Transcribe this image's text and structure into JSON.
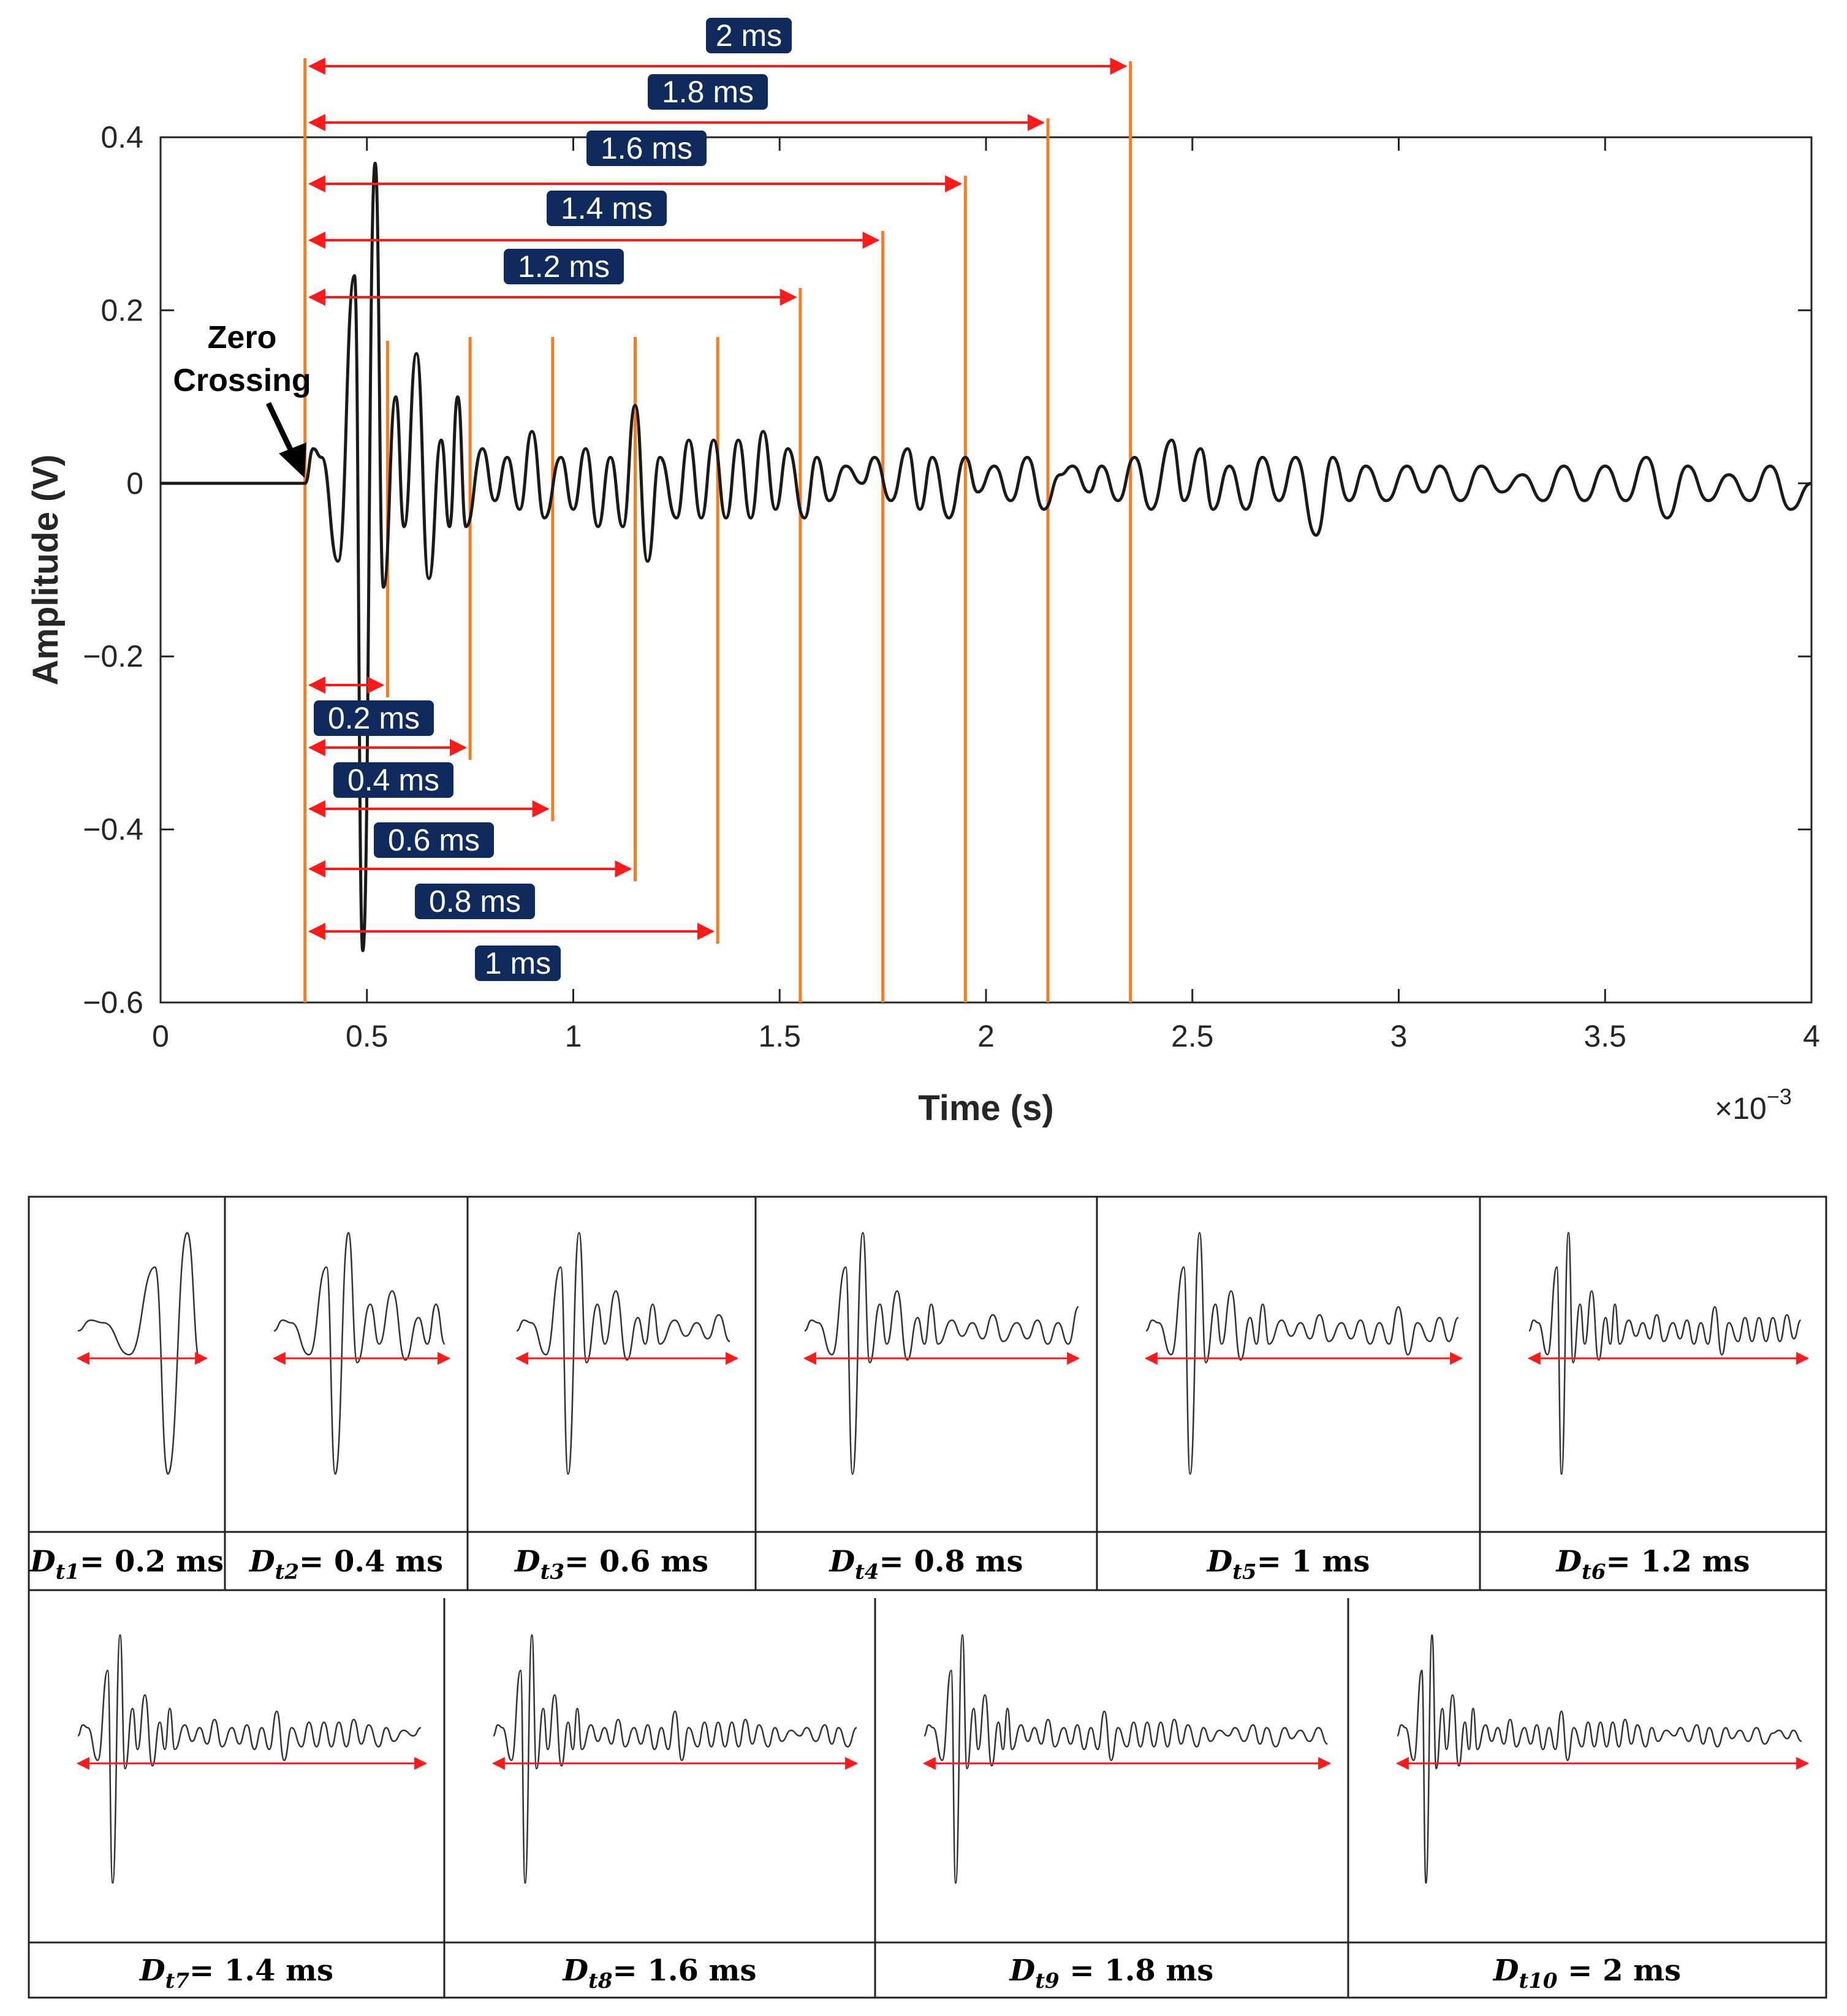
{
  "chart_data": {
    "type": "line",
    "title": "",
    "xlabel": "Time (s)",
    "ylabel": "Amplitude (V)",
    "x_multiplier_label": "×10",
    "x_multiplier_exponent": "−3",
    "xlim": [
      0,
      4
    ],
    "ylim": [
      -0.6,
      0.4
    ],
    "x_ticks": [
      0,
      0.5,
      1,
      1.5,
      2,
      2.5,
      3,
      3.5,
      4
    ],
    "x_tick_labels": [
      "0",
      "0.5",
      "1",
      "1.5",
      "2",
      "2.5",
      "3",
      "3.5",
      "4"
    ],
    "y_ticks": [
      -0.6,
      -0.4,
      -0.2,
      0,
      0.2,
      0.4
    ],
    "y_tick_labels": [
      "−0.6",
      "−0.4",
      "−0.2",
      "0",
      "0.2",
      "0.4"
    ],
    "line_color": "#1a1a1a",
    "signal_peaks": [
      [
        0,
        0
      ],
      [
        0.35,
        0
      ],
      [
        0.37,
        0.04
      ],
      [
        0.39,
        0.03
      ],
      [
        0.43,
        -0.09
      ],
      [
        0.47,
        0.24
      ],
      [
        0.49,
        -0.54
      ],
      [
        0.52,
        0.37
      ],
      [
        0.54,
        -0.12
      ],
      [
        0.57,
        0.1
      ],
      [
        0.59,
        -0.05
      ],
      [
        0.62,
        0.15
      ],
      [
        0.65,
        -0.11
      ],
      [
        0.68,
        0.05
      ],
      [
        0.7,
        -0.05
      ],
      [
        0.72,
        0.1
      ],
      [
        0.74,
        -0.05
      ],
      [
        0.78,
        0.04
      ],
      [
        0.81,
        -0.02
      ],
      [
        0.84,
        0.03
      ],
      [
        0.87,
        -0.03
      ],
      [
        0.9,
        0.06
      ],
      [
        0.93,
        -0.04
      ],
      [
        0.97,
        0.03
      ],
      [
        1.0,
        -0.03
      ],
      [
        1.03,
        0.04
      ],
      [
        1.06,
        -0.05
      ],
      [
        1.09,
        0.03
      ],
      [
        1.12,
        -0.05
      ],
      [
        1.15,
        0.09
      ],
      [
        1.18,
        -0.09
      ],
      [
        1.21,
        0.03
      ],
      [
        1.25,
        -0.04
      ],
      [
        1.28,
        0.05
      ],
      [
        1.31,
        -0.04
      ],
      [
        1.34,
        0.05
      ],
      [
        1.37,
        -0.04
      ],
      [
        1.4,
        0.05
      ],
      [
        1.43,
        -0.04
      ],
      [
        1.46,
        0.06
      ],
      [
        1.49,
        -0.03
      ],
      [
        1.52,
        0.04
      ],
      [
        1.56,
        -0.04
      ],
      [
        1.59,
        0.03
      ],
      [
        1.62,
        -0.02
      ],
      [
        1.66,
        0.02
      ],
      [
        1.7,
        0.0
      ],
      [
        1.73,
        0.03
      ],
      [
        1.77,
        -0.02
      ],
      [
        1.81,
        0.04
      ],
      [
        1.84,
        -0.03
      ],
      [
        1.87,
        0.03
      ],
      [
        1.91,
        -0.04
      ],
      [
        1.95,
        0.03
      ],
      [
        1.98,
        -0.01
      ],
      [
        2.02,
        0.02
      ],
      [
        2.06,
        -0.02
      ],
      [
        2.1,
        0.03
      ],
      [
        2.14,
        -0.03
      ],
      [
        2.18,
        0.01
      ],
      [
        2.21,
        0.02
      ],
      [
        2.25,
        -0.01
      ],
      [
        2.28,
        0.02
      ],
      [
        2.32,
        -0.02
      ],
      [
        2.36,
        0.03
      ],
      [
        2.4,
        -0.03
      ],
      [
        2.45,
        0.05
      ],
      [
        2.48,
        -0.02
      ],
      [
        2.52,
        0.04
      ],
      [
        2.55,
        -0.03
      ],
      [
        2.59,
        0.02
      ],
      [
        2.63,
        -0.03
      ],
      [
        2.67,
        0.03
      ],
      [
        2.71,
        -0.02
      ],
      [
        2.75,
        0.03
      ],
      [
        2.8,
        -0.06
      ],
      [
        2.84,
        0.03
      ],
      [
        2.88,
        -0.02
      ],
      [
        2.92,
        0.02
      ],
      [
        2.97,
        -0.02
      ],
      [
        3.02,
        0.02
      ],
      [
        3.06,
        -0.01
      ],
      [
        3.1,
        0.02
      ],
      [
        3.15,
        -0.02
      ],
      [
        3.2,
        0.02
      ],
      [
        3.25,
        -0.01
      ],
      [
        3.3,
        0.01
      ],
      [
        3.35,
        -0.02
      ],
      [
        3.4,
        0.02
      ],
      [
        3.45,
        -0.02
      ],
      [
        3.5,
        0.02
      ],
      [
        3.55,
        -0.02
      ],
      [
        3.6,
        0.03
      ],
      [
        3.65,
        -0.04
      ],
      [
        3.7,
        0.02
      ],
      [
        3.75,
        -0.02
      ],
      [
        3.8,
        0.01
      ],
      [
        3.85,
        -0.02
      ],
      [
        3.9,
        0.02
      ],
      [
        3.95,
        -0.03
      ],
      [
        4.0,
        0.0
      ]
    ],
    "onset_ms": 0.35,
    "windows_ms": [
      0.2,
      0.4,
      0.6,
      0.8,
      1.0,
      1.2,
      1.4,
      1.6,
      1.8,
      2.0
    ],
    "window_labels": [
      "0.2 ms",
      "0.4 ms",
      "0.6 ms",
      "0.8 ms",
      "1 ms",
      "1.2 ms",
      "1.4 ms",
      "1.6 ms",
      "1.8 ms",
      "2 ms"
    ],
    "annotation_label_color": "#0f2a5c",
    "marker_color": "#f57c22",
    "arrow_color": "#ff1a1a",
    "zero_crossing": {
      "line1": "Zero",
      "line2": "Crossing"
    }
  },
  "panels": [
    {
      "symbol": "D",
      "sub": "t1",
      "eq": "= 0.2 ms"
    },
    {
      "symbol": "D",
      "sub": "t2",
      "eq": "= 0.4 ms"
    },
    {
      "symbol": "D",
      "sub": "t3",
      "eq": "= 0.6 ms"
    },
    {
      "symbol": "D",
      "sub": "t4",
      "eq": "= 0.8 ms"
    },
    {
      "symbol": "D",
      "sub": "t5",
      "eq": "= 1 ms"
    },
    {
      "symbol": "D",
      "sub": "t6",
      "eq": "= 1.2 ms"
    },
    {
      "symbol": "D",
      "sub": "t7",
      "eq": "= 1.4 ms"
    },
    {
      "symbol": "D",
      "sub": "t8",
      "eq": "= 1.6 ms"
    },
    {
      "symbol": "D",
      "sub": "t9",
      "eq": " = 1.8 ms"
    },
    {
      "symbol": "D",
      "sub": "t10",
      "eq": " = 2 ms"
    }
  ]
}
